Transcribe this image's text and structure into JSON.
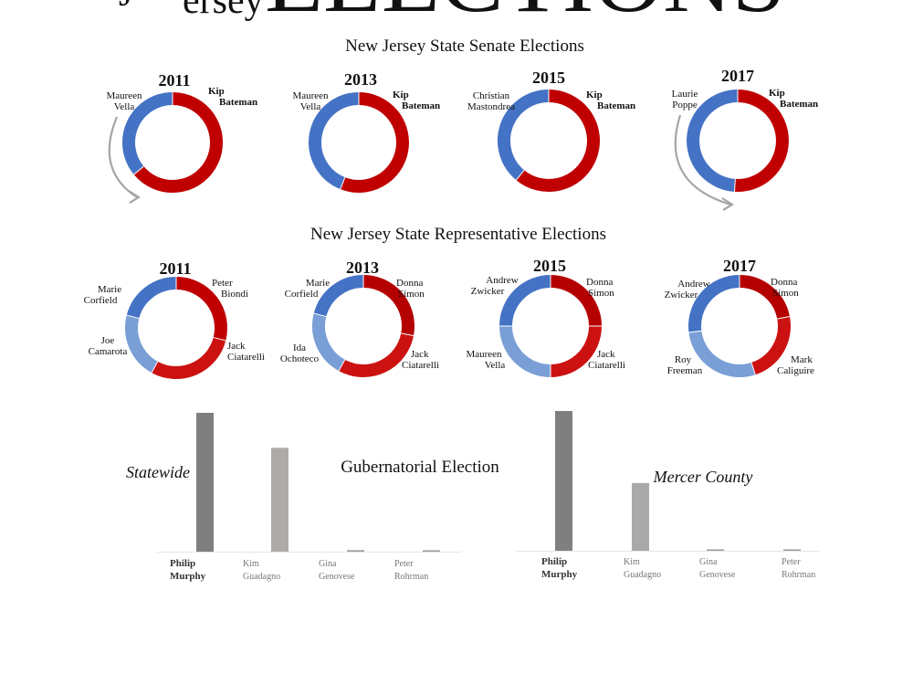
{
  "header": {
    "title_fragment_small": "ersey",
    "title_fragment_large": "ELECTIONS"
  },
  "chart_data": [
    {
      "type": "pie",
      "style": "donut",
      "section": "New Jersey State Senate Elections",
      "title": "2011",
      "slices": [
        {
          "label": "Kip Bateman",
          "value": 64,
          "color": "#c00000",
          "bold": true
        },
        {
          "label": "Maureen Vella",
          "value": 36,
          "color": "#4472c4",
          "bold": false
        }
      ],
      "arrow": true
    },
    {
      "type": "pie",
      "style": "donut",
      "section": "New Jersey State Senate Elections",
      "title": "2013",
      "slices": [
        {
          "label": "Kip Bateman",
          "value": 56,
          "color": "#c00000",
          "bold": true
        },
        {
          "label": "Maureen Vella",
          "value": 44,
          "color": "#4472c4",
          "bold": false
        }
      ],
      "arrow": false
    },
    {
      "type": "pie",
      "style": "donut",
      "section": "New Jersey State Senate Elections",
      "title": "2015",
      "slices": [
        {
          "label": "Kip Bateman",
          "value": 61,
          "color": "#c00000",
          "bold": true
        },
        {
          "label": "Christian Mastondrea",
          "value": 39,
          "color": "#4472c4",
          "bold": false
        }
      ],
      "arrow": false
    },
    {
      "type": "pie",
      "style": "donut",
      "section": "New Jersey State Senate Elections",
      "title": "2017",
      "slices": [
        {
          "label": "Kip Bateman",
          "value": 51,
          "color": "#c00000",
          "bold": true
        },
        {
          "label": "Laurie Poppe",
          "value": 49,
          "color": "#4472c4",
          "bold": false
        }
      ],
      "arrow": true
    },
    {
      "type": "pie",
      "style": "donut",
      "section": "New Jersey State Representative Elections",
      "title": "2011",
      "slices": [
        {
          "label": "Peter Biondi",
          "value": 29,
          "color": "#c00000",
          "bold": false
        },
        {
          "label": "Jack Ciatarelli",
          "value": 29,
          "color": "#cc1111",
          "bold": false
        },
        {
          "label": "Joe Camarota",
          "value": 21,
          "color": "#7a9fd6",
          "bold": false
        },
        {
          "label": "Marie Corfield",
          "value": 21,
          "color": "#4472c4",
          "bold": false
        }
      ],
      "arrow": false
    },
    {
      "type": "pie",
      "style": "donut",
      "section": "New Jersey State Representative Elections",
      "title": "2013",
      "slices": [
        {
          "label": "Donna Simon",
          "value": 28,
          "color": "#b50000",
          "bold": false
        },
        {
          "label": "Jack Ciatarelli",
          "value": 30,
          "color": "#cc1111",
          "bold": false
        },
        {
          "label": "Ida Ochoteco",
          "value": 21,
          "color": "#7a9fd6",
          "bold": false
        },
        {
          "label": "Marie Corfield",
          "value": 21,
          "color": "#4472c4",
          "bold": false
        }
      ],
      "arrow": false
    },
    {
      "type": "pie",
      "style": "donut",
      "section": "New Jersey State Representative Elections",
      "title": "2015",
      "slices": [
        {
          "label": "Donna Simon",
          "value": 25,
          "color": "#b50000",
          "bold": false
        },
        {
          "label": "Jack Ciatarelli",
          "value": 25,
          "color": "#cc1111",
          "bold": false
        },
        {
          "label": "Maureen Vella",
          "value": 25,
          "color": "#7a9fd6",
          "bold": false
        },
        {
          "label": "Andrew Zwicker",
          "value": 25,
          "color": "#4472c4",
          "bold": false
        }
      ],
      "arrow": false
    },
    {
      "type": "pie",
      "style": "donut",
      "section": "New Jersey State Representative Elections",
      "title": "2017",
      "slices": [
        {
          "label": "Donna Simon",
          "value": 22,
          "color": "#b50000",
          "bold": false
        },
        {
          "label": "Mark Caliguire",
          "value": 23,
          "color": "#cc1111",
          "bold": false
        },
        {
          "label": "Roy Freeman",
          "value": 28,
          "color": "#7a9fd6",
          "bold": false
        },
        {
          "label": "Andrew Zwicker",
          "value": 27,
          "color": "#4472c4",
          "bold": false
        }
      ],
      "arrow": false
    },
    {
      "type": "bar",
      "section": "Gubernatorial Election",
      "title": "Statewide",
      "categories": [
        "Philip Murphy",
        "Kim Guadagno",
        "Gina Genovese",
        "Peter Rohrman"
      ],
      "values": [
        56.0,
        41.9,
        0.6,
        0.5
      ],
      "colors": [
        "#7f7f7f",
        "#aeaaaa",
        "#9a9a9a",
        "#9a9a9a"
      ],
      "ylim": [
        0,
        60
      ]
    },
    {
      "type": "bar",
      "section": "Gubernatorial Election",
      "title": "Mercer County",
      "categories": [
        "Philip Murphy",
        "Kim Guadagno",
        "Gina Genovese",
        "Peter Rohrman"
      ],
      "values": [
        66.0,
        32.0,
        0.5,
        0.4
      ],
      "colors": [
        "#7f7f7f",
        "#a9a9a9",
        "#9a9a9a",
        "#9a9a9a"
      ],
      "ylim": [
        0,
        68
      ]
    }
  ],
  "sections": {
    "senate_heading": "New Jersey State Senate Elections",
    "rep_heading": "New Jersey State Representative Elections",
    "gov_heading": "Gubernatorial Election"
  }
}
